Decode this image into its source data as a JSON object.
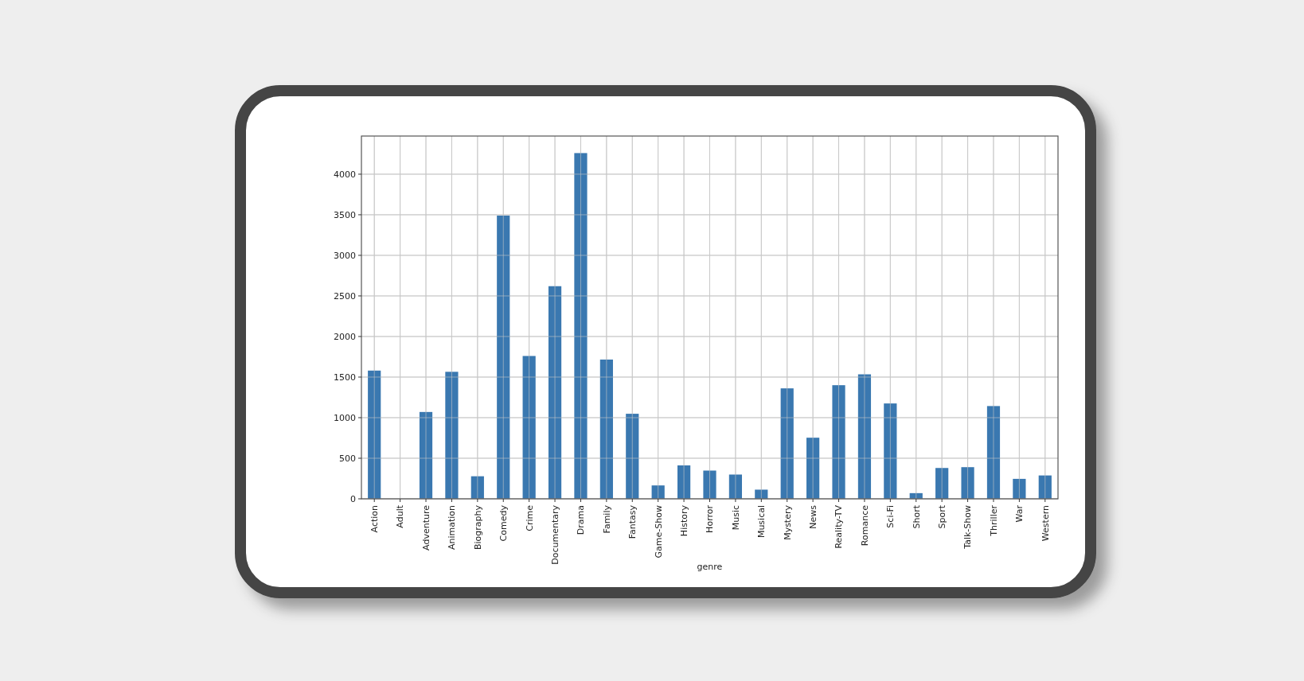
{
  "chart_data": {
    "type": "bar",
    "xlabel": "genre",
    "categories": [
      "Action",
      "Adult",
      "Adventure",
      "Animation",
      "Biography",
      "Comedy",
      "Crime",
      "Documentary",
      "Drama",
      "Family",
      "Fantasy",
      "Game-Show",
      "History",
      "Horror",
      "Music",
      "Musical",
      "Mystery",
      "News",
      "Reality-TV",
      "Romance",
      "Sci-Fi",
      "Short",
      "Sport",
      "Talk-Show",
      "Thriller",
      "War",
      "Western"
    ],
    "values": [
      1580,
      0,
      1070,
      1565,
      278,
      3490,
      1760,
      2620,
      4260,
      1716,
      1048,
      165,
      412,
      348,
      299,
      113,
      1361,
      753,
      1400,
      1534,
      1175,
      70,
      380,
      390,
      1143,
      246,
      288
    ],
    "color": "#3a78b0",
    "ylim": [
      0,
      4470
    ],
    "yticks": [
      0,
      500,
      1000,
      1500,
      2000,
      2500,
      3000,
      3500,
      4000
    ],
    "grid": true
  }
}
